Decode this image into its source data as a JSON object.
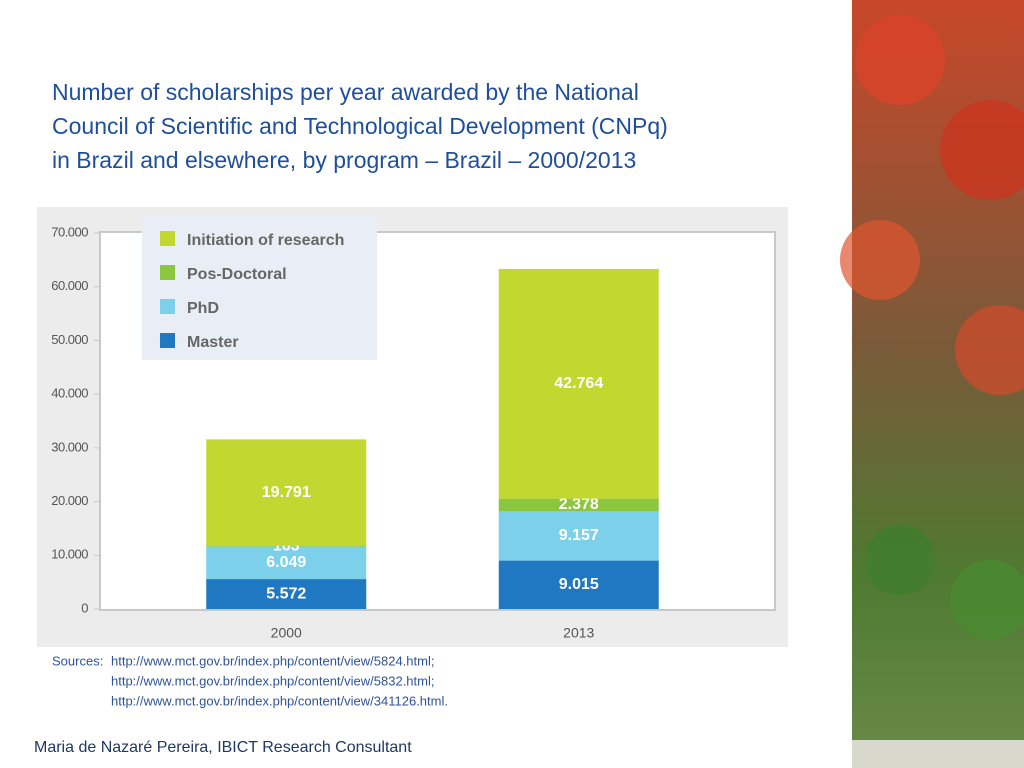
{
  "chart_data": {
    "type": "stacked_bar",
    "title": [
      "Number of scholarships per year awarded by the National",
      "Council of Scientific and Technological Development  (CNPq)",
      "in Brazil and elsewhere, by program – Brazil – 2000/2013"
    ],
    "categories": [
      "2000",
      "2013"
    ],
    "series": [
      {
        "name": "Master",
        "color": "#1f78c1",
        "values": [
          5572,
          9015
        ],
        "value_labels": [
          "5.572",
          "9.015"
        ]
      },
      {
        "name": "PhD",
        "color": "#7dd0ea",
        "values": [
          6049,
          9157
        ],
        "value_labels": [
          "6.049",
          "9.157"
        ]
      },
      {
        "name": "Pos-Doctoral",
        "color": "#8cc63f",
        "values": [
          163,
          2378
        ],
        "value_labels": [
          "163",
          "2.378"
        ]
      },
      {
        "name": "Initiation of research",
        "color": "#c2d72f",
        "values": [
          19791,
          42764
        ],
        "value_labels": [
          "19.791",
          "42.764"
        ]
      }
    ],
    "ylim": [
      0,
      70000
    ],
    "yticks": [
      0,
      {
        "value": 10000,
        "label": "10.000"
      },
      {
        "value": 20000,
        "label": "20.000"
      },
      {
        "value": 30000,
        "label": "30.000"
      },
      {
        "value": 40000,
        "label": "40.000"
      },
      {
        "value": 50000,
        "label": "50.000"
      },
      {
        "value": 60000,
        "label": "60.000"
      },
      {
        "value": 70000,
        "label": "70.000"
      }
    ],
    "legend": "top-left"
  },
  "sources": {
    "label": "Sources:",
    "lines": [
      "http://www.mct.gov.br/index.php/content/view/5824.html;",
      "http://www.mct.gov.br/index.php/content/view/5832.html;",
      "http://www.mct.gov.br/index.php/content/view/341126.html."
    ]
  },
  "footer": "Maria de Nazaré Pereira, IBICT Research Consultant"
}
